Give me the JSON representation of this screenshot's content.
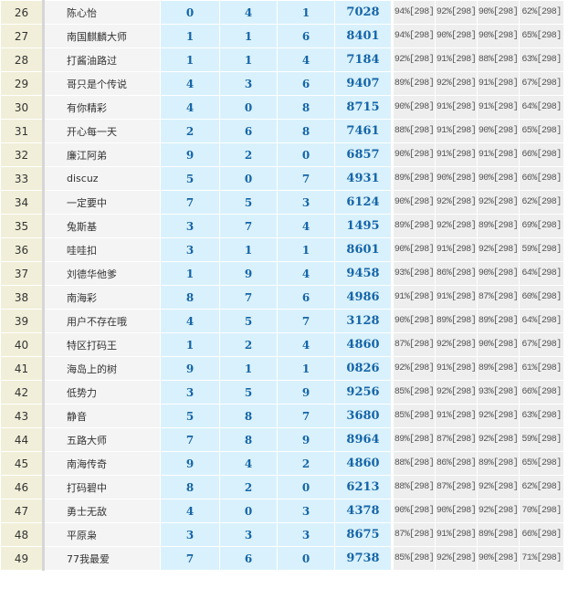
{
  "rows": [
    {
      "rank": "26",
      "name": "陈心怡",
      "d": [
        "0",
        "4",
        "1"
      ],
      "num": "7028",
      "pct": [
        "94%[298]",
        "92%[298]",
        "90%[298]",
        "62%[298]"
      ]
    },
    {
      "rank": "27",
      "name": "南国麒麟大师",
      "d": [
        "1",
        "1",
        "6"
      ],
      "num": "8401",
      "pct": [
        "94%[298]",
        "90%[298]",
        "90%[298]",
        "65%[298]"
      ]
    },
    {
      "rank": "28",
      "name": "打酱油路过",
      "d": [
        "1",
        "1",
        "4"
      ],
      "num": "7184",
      "pct": [
        "92%[298]",
        "91%[298]",
        "88%[298]",
        "63%[298]"
      ]
    },
    {
      "rank": "29",
      "name": "哥只是个传说",
      "d": [
        "4",
        "3",
        "6"
      ],
      "num": "9407",
      "pct": [
        "89%[298]",
        "92%[298]",
        "91%[298]",
        "67%[298]"
      ]
    },
    {
      "rank": "30",
      "name": "有你精彩",
      "d": [
        "4",
        "0",
        "8"
      ],
      "num": "8715",
      "pct": [
        "90%[298]",
        "91%[298]",
        "91%[298]",
        "64%[298]"
      ]
    },
    {
      "rank": "31",
      "name": "开心每一天",
      "d": [
        "2",
        "6",
        "8"
      ],
      "num": "7461",
      "pct": [
        "88%[298]",
        "91%[298]",
        "90%[298]",
        "65%[298]"
      ]
    },
    {
      "rank": "32",
      "name": "廉江阿弟",
      "d": [
        "9",
        "2",
        "0"
      ],
      "num": "6857",
      "pct": [
        "90%[298]",
        "91%[298]",
        "91%[298]",
        "66%[298]"
      ]
    },
    {
      "rank": "33",
      "name": "discuz",
      "d": [
        "5",
        "0",
        "7"
      ],
      "num": "4931",
      "pct": [
        "89%[298]",
        "90%[298]",
        "90%[298]",
        "66%[298]"
      ]
    },
    {
      "rank": "34",
      "name": "一定要中",
      "d": [
        "7",
        "5",
        "3"
      ],
      "num": "6124",
      "pct": [
        "90%[298]",
        "92%[298]",
        "92%[298]",
        "62%[298]"
      ]
    },
    {
      "rank": "35",
      "name": "兔斯基",
      "d": [
        "3",
        "7",
        "4"
      ],
      "num": "1495",
      "pct": [
        "89%[298]",
        "92%[298]",
        "89%[298]",
        "69%[298]"
      ]
    },
    {
      "rank": "36",
      "name": "哇哇扣",
      "d": [
        "3",
        "1",
        "1"
      ],
      "num": "8601",
      "pct": [
        "90%[298]",
        "91%[298]",
        "92%[298]",
        "59%[298]"
      ]
    },
    {
      "rank": "37",
      "name": "刘德华他爹",
      "d": [
        "1",
        "9",
        "4"
      ],
      "num": "9458",
      "pct": [
        "93%[298]",
        "86%[298]",
        "90%[298]",
        "64%[298]"
      ]
    },
    {
      "rank": "38",
      "name": "南海彩",
      "d": [
        "8",
        "7",
        "6"
      ],
      "num": "4986",
      "pct": [
        "91%[298]",
        "91%[298]",
        "87%[298]",
        "60%[298]"
      ]
    },
    {
      "rank": "39",
      "name": "用户不存在哦",
      "d": [
        "4",
        "5",
        "7"
      ],
      "num": "3128",
      "pct": [
        "90%[298]",
        "89%[298]",
        "89%[298]",
        "64%[298]"
      ]
    },
    {
      "rank": "40",
      "name": "特区打码王",
      "d": [
        "1",
        "2",
        "4"
      ],
      "num": "4860",
      "pct": [
        "87%[298]",
        "92%[298]",
        "90%[298]",
        "67%[298]"
      ]
    },
    {
      "rank": "41",
      "name": "海岛上的树",
      "d": [
        "9",
        "1",
        "1"
      ],
      "num": "0826",
      "pct": [
        "92%[298]",
        "91%[298]",
        "89%[298]",
        "61%[298]"
      ]
    },
    {
      "rank": "42",
      "name": "低势力",
      "d": [
        "3",
        "5",
        "9"
      ],
      "num": "9256",
      "pct": [
        "85%[298]",
        "92%[298]",
        "93%[298]",
        "66%[298]"
      ]
    },
    {
      "rank": "43",
      "name": "静音",
      "d": [
        "5",
        "8",
        "7"
      ],
      "num": "3680",
      "pct": [
        "85%[298]",
        "91%[298]",
        "92%[298]",
        "63%[298]"
      ]
    },
    {
      "rank": "44",
      "name": "五路大师",
      "d": [
        "7",
        "8",
        "9"
      ],
      "num": "8964",
      "pct": [
        "89%[298]",
        "87%[298]",
        "92%[298]",
        "59%[298]"
      ]
    },
    {
      "rank": "45",
      "name": "南海传奇",
      "d": [
        "9",
        "4",
        "2"
      ],
      "num": "4860",
      "pct": [
        "88%[298]",
        "86%[298]",
        "89%[298]",
        "65%[298]"
      ]
    },
    {
      "rank": "46",
      "name": "打码碧中",
      "d": [
        "8",
        "2",
        "0"
      ],
      "num": "6213",
      "pct": [
        "88%[298]",
        "87%[298]",
        "92%[298]",
        "62%[298]"
      ]
    },
    {
      "rank": "47",
      "name": "勇士无敌",
      "d": [
        "4",
        "0",
        "3"
      ],
      "num": "4378",
      "pct": [
        "90%[298]",
        "90%[298]",
        "92%[298]",
        "70%[298]"
      ]
    },
    {
      "rank": "48",
      "name": "平原枭",
      "d": [
        "3",
        "3",
        "3"
      ],
      "num": "8675",
      "pct": [
        "87%[298]",
        "91%[298]",
        "89%[298]",
        "66%[298]"
      ]
    },
    {
      "rank": "49",
      "name": "77我最爱",
      "d": [
        "7",
        "6",
        "0"
      ],
      "num": "9738",
      "pct": [
        "85%[298]",
        "92%[298]",
        "90%[298]",
        "71%[298]"
      ]
    }
  ]
}
